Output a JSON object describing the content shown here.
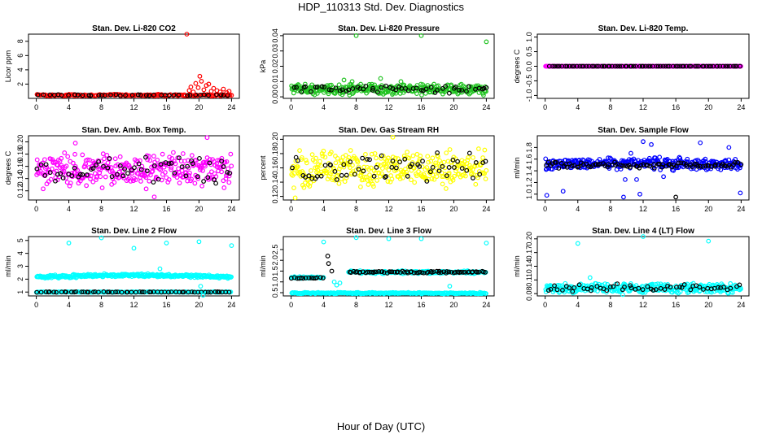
{
  "title": "HDP_110313  Std. Dev. Diagnostics",
  "xlabel": "Hour of Day (UTC)",
  "colors": {
    "red": "#ff0000",
    "green": "#22c322",
    "magenta": "#ff00ff",
    "yellow": "#ffff00",
    "blue": "#0000ff",
    "cyan": "#00ffff",
    "black": "#000000"
  },
  "chart_data": [
    {
      "id": "co2",
      "type": "scatter",
      "title": "Stan. Dev. Li-820 CO2",
      "ylabel": "Licor ppm",
      "xlim": [
        0,
        24
      ],
      "xticks": [
        0,
        4,
        8,
        12,
        16,
        20,
        24
      ],
      "ylim": [
        0,
        9
      ],
      "yticks": [
        2,
        4,
        6,
        8
      ],
      "yticklabels": [
        "2",
        "4",
        "6",
        "8"
      ],
      "color": "red",
      "bands": [
        {
          "color": "red",
          "base": 0.45,
          "spread": 0.15,
          "count": 160,
          "x": [
            0,
            24
          ]
        },
        {
          "color": "black",
          "base": 0.45,
          "spread": 0.1,
          "count": 40,
          "x": [
            0,
            24
          ]
        }
      ],
      "points": [
        {
          "x": 18.5,
          "y": 9.0,
          "color": "red"
        },
        {
          "x": 18.8,
          "y": 1.1,
          "color": "red"
        },
        {
          "x": 19.0,
          "y": 1.6,
          "color": "red"
        },
        {
          "x": 19.3,
          "y": 0.9,
          "color": "red"
        },
        {
          "x": 19.6,
          "y": 2.1,
          "color": "red"
        },
        {
          "x": 19.9,
          "y": 1.5,
          "color": "red"
        },
        {
          "x": 20.1,
          "y": 3.1,
          "color": "red"
        },
        {
          "x": 20.3,
          "y": 2.4,
          "color": "red"
        },
        {
          "x": 20.6,
          "y": 1.2,
          "color": "red"
        },
        {
          "x": 20.9,
          "y": 1.8,
          "color": "red"
        },
        {
          "x": 21.2,
          "y": 2.0,
          "color": "red"
        },
        {
          "x": 21.5,
          "y": 1.0,
          "color": "red"
        },
        {
          "x": 21.8,
          "y": 1.4,
          "color": "red"
        },
        {
          "x": 22.2,
          "y": 1.1,
          "color": "red"
        },
        {
          "x": 22.6,
          "y": 0.9,
          "color": "red"
        },
        {
          "x": 23.0,
          "y": 1.3,
          "color": "red"
        },
        {
          "x": 23.4,
          "y": 0.8,
          "color": "red"
        },
        {
          "x": 23.7,
          "y": 1.0,
          "color": "red"
        }
      ]
    },
    {
      "id": "pressure",
      "type": "scatter",
      "title": "Stan. Dev. Li-820 Pressure",
      "ylabel": "kPa",
      "xlim": [
        0,
        24
      ],
      "xticks": [
        0,
        4,
        8,
        12,
        16,
        20,
        24
      ],
      "ylim": [
        -0.001,
        0.041
      ],
      "yticks": [
        0.0,
        0.01,
        0.02,
        0.03,
        0.04
      ],
      "yticklabels": [
        "0.00",
        "0.01",
        "0.02",
        "0.03",
        "0.04"
      ],
      "color": "green",
      "bands": [
        {
          "color": "green",
          "base": 0.005,
          "spread": 0.004,
          "count": 320,
          "x": [
            0,
            24
          ]
        },
        {
          "color": "black",
          "base": 0.005,
          "spread": 0.003,
          "count": 55,
          "x": [
            0,
            24
          ]
        }
      ],
      "points": [
        {
          "x": 8.0,
          "y": 0.04,
          "color": "green"
        },
        {
          "x": 16.0,
          "y": 0.04,
          "color": "green"
        },
        {
          "x": 24.0,
          "y": 0.036,
          "color": "green"
        },
        {
          "x": 6.5,
          "y": 0.011,
          "color": "green"
        },
        {
          "x": 7.5,
          "y": 0.01,
          "color": "green"
        },
        {
          "x": 11.0,
          "y": 0.012,
          "color": "green"
        },
        {
          "x": 13.5,
          "y": 0.01,
          "color": "green"
        },
        {
          "x": 24.0,
          "y": 0.006,
          "color": "black"
        }
      ]
    },
    {
      "id": "temp",
      "type": "scatter",
      "title": "Stan. Dev. Li-820 Temp.",
      "ylabel": "degrees C",
      "xlim": [
        0,
        24
      ],
      "xticks": [
        0,
        4,
        8,
        12,
        16,
        20,
        24
      ],
      "ylim": [
        -1.1,
        1.1
      ],
      "yticks": [
        -1.0,
        -0.5,
        0.0,
        0.5,
        1.0
      ],
      "yticklabels": [
        "-1.0",
        "-0.5",
        "0.0",
        "0.5",
        "1.0"
      ],
      "color": "magenta",
      "bands": [
        {
          "color": "magenta",
          "base": 0.0,
          "spread": 0.0,
          "count": 320,
          "x": [
            0,
            24
          ]
        },
        {
          "color": "black",
          "base": 0.0,
          "spread": 0.0,
          "count": 80,
          "x": [
            0.5,
            24
          ]
        }
      ],
      "points": []
    },
    {
      "id": "ambbox",
      "type": "scatter",
      "title": "Stan. Dev. Amb. Box Temp.",
      "ylabel": "degrees C",
      "xlim": [
        0,
        24
      ],
      "xticks": [
        0,
        4,
        8,
        12,
        16,
        20,
        24
      ],
      "ylim": [
        0.105,
        0.21
      ],
      "yticks": [
        0.12,
        0.14,
        0.16,
        0.18,
        0.2
      ],
      "yticklabels": [
        "0.12",
        "0.14",
        "0.16",
        "0.18",
        "0.20"
      ],
      "color": "magenta",
      "bands": [
        {
          "color": "magenta",
          "base": 0.153,
          "spread": 0.032,
          "count": 320,
          "x": [
            0,
            24
          ]
        },
        {
          "color": "black",
          "base": 0.153,
          "spread": 0.025,
          "count": 60,
          "x": [
            0,
            24
          ]
        }
      ],
      "points": [
        {
          "x": 21.0,
          "y": 0.207,
          "color": "magenta"
        },
        {
          "x": 14.5,
          "y": 0.11,
          "color": "magenta"
        },
        {
          "x": 4.8,
          "y": 0.198,
          "color": "magenta"
        }
      ]
    },
    {
      "id": "rh",
      "type": "scatter",
      "title": "Stan. Dev. Gas Stream RH",
      "ylabel": "percent",
      "xlim": [
        0,
        24
      ],
      "xticks": [
        0,
        4,
        8,
        12,
        16,
        20,
        24
      ],
      "ylim": [
        0.115,
        0.205
      ],
      "yticks": [
        0.12,
        0.14,
        0.16,
        0.18,
        0.2
      ],
      "yticklabels": [
        "0.12",
        "0.14",
        "0.16",
        "0.18",
        "0.20"
      ],
      "color": "yellow",
      "bands": [
        {
          "color": "yellow",
          "base": 0.16,
          "spread": 0.03,
          "count": 320,
          "x": [
            0,
            24
          ]
        },
        {
          "color": "black",
          "base": 0.16,
          "spread": 0.025,
          "count": 60,
          "x": [
            0,
            24
          ]
        }
      ],
      "points": [
        {
          "x": 12.5,
          "y": 0.203,
          "color": "yellow"
        },
        {
          "x": 0.5,
          "y": 0.118,
          "color": "yellow"
        }
      ]
    },
    {
      "id": "sampleflow",
      "type": "scatter",
      "title": "Stan. Dev. Sample Flow",
      "ylabel": "ml/min",
      "xlim": [
        0,
        24
      ],
      "xticks": [
        0,
        4,
        8,
        12,
        16,
        20,
        24
      ],
      "ylim": [
        0.9,
        2.0
      ],
      "yticks": [
        1.0,
        1.2,
        1.4,
        1.6,
        1.8
      ],
      "yticklabels": [
        "1.0",
        "1.2",
        "1.4",
        "1.6",
        "1.8"
      ],
      "color": "blue",
      "bands": [
        {
          "color": "blue",
          "base": 1.52,
          "spread": 0.12,
          "count": 320,
          "x": [
            0,
            24
          ]
        },
        {
          "color": "black",
          "base": 1.5,
          "spread": 0.06,
          "count": 90,
          "x": [
            0,
            24
          ]
        }
      ],
      "points": [
        {
          "x": 0.2,
          "y": 0.98,
          "color": "blue"
        },
        {
          "x": 2.2,
          "y": 1.05,
          "color": "blue"
        },
        {
          "x": 9.6,
          "y": 0.95,
          "color": "blue"
        },
        {
          "x": 11.6,
          "y": 1.0,
          "color": "blue"
        },
        {
          "x": 16.0,
          "y": 0.95,
          "color": "black"
        },
        {
          "x": 23.9,
          "y": 1.02,
          "color": "blue"
        },
        {
          "x": 12.0,
          "y": 1.9,
          "color": "blue"
        },
        {
          "x": 13.0,
          "y": 1.85,
          "color": "blue"
        },
        {
          "x": 19.0,
          "y": 1.88,
          "color": "blue"
        },
        {
          "x": 22.5,
          "y": 1.8,
          "color": "blue"
        },
        {
          "x": 11.2,
          "y": 1.25,
          "color": "blue"
        },
        {
          "x": 14.5,
          "y": 1.3,
          "color": "blue"
        },
        {
          "x": 10.5,
          "y": 1.7,
          "color": "blue"
        },
        {
          "x": 9.8,
          "y": 1.25,
          "color": "blue"
        }
      ]
    },
    {
      "id": "line2",
      "type": "scatter",
      "title": "Stan. Dev. Line 2 Flow",
      "ylabel": "ml/min",
      "xlim": [
        0,
        24
      ],
      "xticks": [
        0,
        4,
        8,
        12,
        16,
        20,
        24
      ],
      "ylim": [
        0.7,
        5.3
      ],
      "yticks": [
        1,
        2,
        3,
        4,
        5
      ],
      "yticklabels": [
        "1",
        "2",
        "3",
        "4",
        "5"
      ],
      "color": "cyan",
      "bands": [
        {
          "color": "cyan",
          "base": 2.15,
          "spread": 0.15,
          "count": 300,
          "x": [
            0,
            24
          ],
          "trend": 0.15
        },
        {
          "color": "cyan",
          "base": 1.0,
          "spread": 0.03,
          "count": 200,
          "x": [
            0,
            24
          ]
        },
        {
          "color": "black",
          "base": 1.0,
          "spread": 0.03,
          "count": 60,
          "x": [
            0,
            24
          ]
        }
      ],
      "points": [
        {
          "x": 4.0,
          "y": 4.8,
          "color": "cyan"
        },
        {
          "x": 8.0,
          "y": 5.2,
          "color": "cyan"
        },
        {
          "x": 12.0,
          "y": 4.4,
          "color": "cyan"
        },
        {
          "x": 16.0,
          "y": 4.8,
          "color": "cyan"
        },
        {
          "x": 20.0,
          "y": 4.9,
          "color": "cyan"
        },
        {
          "x": 24.0,
          "y": 4.6,
          "color": "cyan"
        },
        {
          "x": 15.2,
          "y": 2.8,
          "color": "cyan"
        },
        {
          "x": 20.2,
          "y": 1.45,
          "color": "cyan"
        },
        {
          "x": 20.5,
          "y": 0.75,
          "color": "cyan"
        }
      ]
    },
    {
      "id": "line3",
      "type": "scatter",
      "title": "Stan. Dev. Line 3 Flow",
      "ylabel": "ml/min",
      "xlim": [
        0,
        24
      ],
      "xticks": [
        0,
        4,
        8,
        12,
        16,
        20,
        24
      ],
      "ylim": [
        0.35,
        3.1
      ],
      "yticks": [
        0.5,
        1.0,
        1.5,
        2.0,
        2.5
      ],
      "yticklabels": [
        "0.5",
        "1.0",
        "1.5",
        "2.0",
        "2.5"
      ],
      "color": "cyan",
      "bands": [
        {
          "color": "cyan",
          "base": 0.48,
          "spread": 0.04,
          "count": 260,
          "x": [
            0,
            24
          ]
        },
        {
          "color": "cyan",
          "base": 1.45,
          "spread": 0.08,
          "count": 180,
          "x": [
            7,
            24
          ]
        },
        {
          "color": "black",
          "base": 1.45,
          "spread": 0.06,
          "count": 70,
          "x": [
            7,
            24
          ]
        },
        {
          "color": "cyan",
          "base": 1.2,
          "spread": 0.05,
          "count": 40,
          "x": [
            0,
            4
          ]
        },
        {
          "color": "black",
          "base": 1.18,
          "spread": 0.04,
          "count": 14,
          "x": [
            0,
            4
          ]
        }
      ],
      "points": [
        {
          "x": 4.0,
          "y": 2.85,
          "color": "cyan"
        },
        {
          "x": 8.0,
          "y": 3.05,
          "color": "cyan"
        },
        {
          "x": 12.0,
          "y": 3.0,
          "color": "cyan"
        },
        {
          "x": 16.0,
          "y": 3.0,
          "color": "cyan"
        },
        {
          "x": 24.0,
          "y": 2.8,
          "color": "cyan"
        },
        {
          "x": 4.5,
          "y": 2.2,
          "color": "black"
        },
        {
          "x": 4.6,
          "y": 1.85,
          "color": "black"
        },
        {
          "x": 5.0,
          "y": 1.5,
          "color": "black"
        },
        {
          "x": 5.3,
          "y": 1.0,
          "color": "cyan"
        },
        {
          "x": 5.6,
          "y": 0.85,
          "color": "cyan"
        },
        {
          "x": 6.0,
          "y": 0.95,
          "color": "cyan"
        },
        {
          "x": 19.5,
          "y": 0.8,
          "color": "cyan"
        }
      ]
    },
    {
      "id": "line4",
      "type": "scatter",
      "title": "Stan. Dev. Line 4 (LT) Flow",
      "ylabel": "ml/min",
      "xlim": [
        0,
        24
      ],
      "xticks": [
        0,
        4,
        8,
        12,
        16,
        20,
        24
      ],
      "ylim": [
        0.075,
        0.205
      ],
      "yticks": [
        0.08,
        0.11,
        0.14,
        0.17,
        0.2
      ],
      "yticklabels": [
        "0.08",
        "0.11",
        "0.14",
        "0.17",
        "0.20"
      ],
      "color": "cyan",
      "bands": [
        {
          "color": "cyan",
          "base": 0.092,
          "spread": 0.012,
          "count": 320,
          "x": [
            0,
            24
          ]
        },
        {
          "color": "black",
          "base": 0.093,
          "spread": 0.009,
          "count": 55,
          "x": [
            0,
            24
          ]
        }
      ],
      "points": [
        {
          "x": 4.0,
          "y": 0.19,
          "color": "cyan"
        },
        {
          "x": 12.0,
          "y": 0.205,
          "color": "cyan"
        },
        {
          "x": 20.0,
          "y": 0.195,
          "color": "cyan"
        },
        {
          "x": 9.5,
          "y": 0.078,
          "color": "cyan"
        },
        {
          "x": 5.5,
          "y": 0.115,
          "color": "cyan"
        }
      ]
    }
  ]
}
